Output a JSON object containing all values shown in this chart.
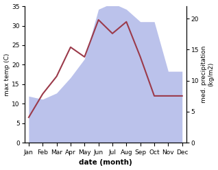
{
  "months": [
    "Jan",
    "Feb",
    "Mar",
    "Apr",
    "May",
    "Jun",
    "Jul",
    "Aug",
    "Sep",
    "Oct",
    "Nov",
    "Dec"
  ],
  "temp": [
    6.5,
    12.5,
    17.0,
    24.5,
    22.0,
    31.5,
    28.0,
    31.0,
    22.0,
    12.0,
    12.0,
    12.0
  ],
  "precip": [
    7.5,
    7.0,
    8.0,
    10.5,
    13.5,
    21.5,
    22.5,
    21.5,
    19.5,
    19.5,
    11.5,
    11.5
  ],
  "temp_color": "#9b3a4a",
  "precip_color": "#b0b8e8",
  "ylabel_left": "max temp (C)",
  "ylabel_right": "med. precipitation\n(kg/m2)",
  "xlabel": "date (month)",
  "ylim_left": [
    0,
    35
  ],
  "ylim_right": [
    0,
    22
  ],
  "yticks_left": [
    0,
    5,
    10,
    15,
    20,
    25,
    30,
    35
  ],
  "yticks_right": [
    0,
    5,
    10,
    15,
    20
  ],
  "bg_color": "#ffffff"
}
